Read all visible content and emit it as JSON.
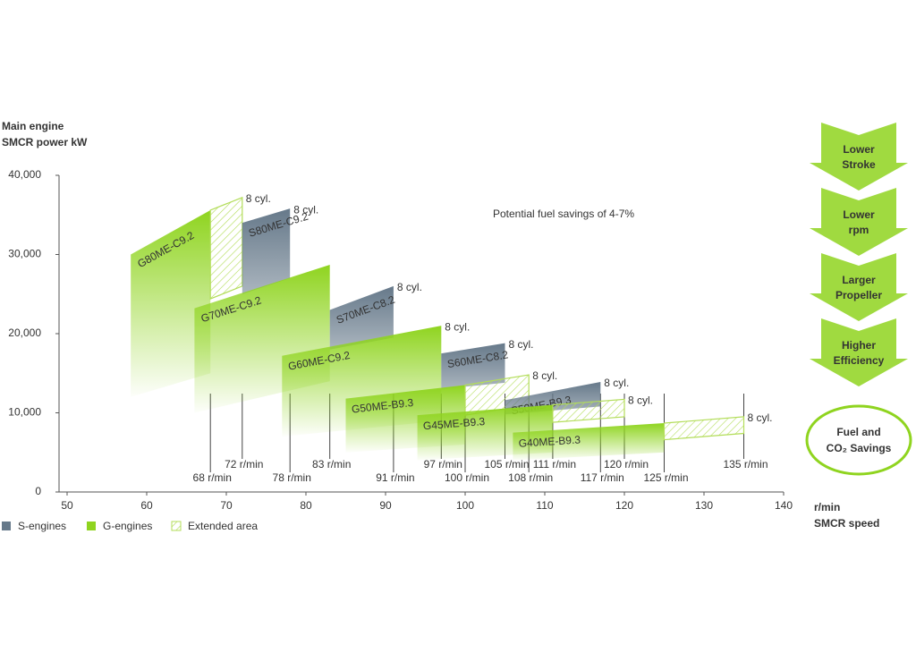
{
  "chart_data": {
    "type": "engine-envelope",
    "y_label": [
      "Main engine",
      "SMCR power kW"
    ],
    "x_label": [
      "r/min",
      "SMCR speed"
    ],
    "xlim": [
      50,
      140
    ],
    "xticks": [
      50,
      60,
      70,
      80,
      90,
      100,
      110,
      120,
      130,
      140
    ],
    "ylim": [
      0,
      40000
    ],
    "yticks": [
      0,
      {
        "value": 10000,
        "label": "10,000"
      },
      {
        "value": 20000,
        "label": "20,000"
      },
      {
        "value": 30000,
        "label": "30,000"
      },
      {
        "value": 40000,
        "label": "40,000"
      }
    ],
    "annotation": "Potential fuel savings of 4-7%",
    "ext_color": "#b3dd5a",
    "legend": [
      {
        "name": "S-engines",
        "color": "#66798a"
      },
      {
        "name": "G-engines",
        "color": "#8fd41f"
      },
      {
        "name": "Extended area",
        "color": "#b3dd5a"
      }
    ],
    "engines": [
      {
        "name": "G80ME-C9.2",
        "color": "#8fd41f",
        "x": [
          58,
          68
        ],
        "top": [
          30000,
          35600
        ],
        "bottom": [
          12000,
          15000
        ],
        "ext": {
          "x": 72,
          "top": 37200,
          "bottom": 26000
        },
        "cyl": "8 cyl."
      },
      {
        "name": "S80ME-C9.2",
        "color": "#66798a",
        "x": [
          72,
          78
        ],
        "top": [
          34000,
          35800
        ],
        "bottom": [
          25000,
          27000
        ],
        "cyl": "8 cyl."
      },
      {
        "name": "G70ME-C9.2",
        "color": "#8fd41f",
        "x": [
          66,
          83
        ],
        "top": [
          23200,
          28700
        ],
        "bottom": [
          10000,
          14000
        ]
      },
      {
        "name": "S70ME-C8.2",
        "color": "#66798a",
        "x": [
          83,
          91
        ],
        "top": [
          23000,
          26000
        ],
        "bottom": [
          18000,
          19500
        ],
        "cyl": "8 cyl."
      },
      {
        "name": "G60ME-C9.2",
        "color": "#8fd41f",
        "x": [
          77,
          97
        ],
        "top": [
          17200,
          21000
        ],
        "bottom": [
          7000,
          9000
        ],
        "cyl": "8 cyl."
      },
      {
        "name": "S60ME-C8.2",
        "color": "#66798a",
        "x": [
          97,
          105
        ],
        "top": [
          17500,
          18800
        ],
        "bottom": [
          13000,
          13800
        ],
        "cyl": "8 cyl."
      },
      {
        "name": "G50ME-B9.3",
        "color": "#8fd41f",
        "x": [
          85,
          100
        ],
        "top": [
          11800,
          13500
        ],
        "bottom": [
          5000,
          6000
        ],
        "ext": {
          "x": 108,
          "top": 14800,
          "bottom": 11000
        },
        "cyl": "8 cyl."
      },
      {
        "name": "S50ME-B9.3",
        "color": "#66798a",
        "x": [
          105,
          117
        ],
        "top": [
          11600,
          13900
        ],
        "bottom": [
          9800,
          10800
        ],
        "cyl": "8 cyl."
      },
      {
        "name": "G45ME-B9.3",
        "color": "#8fd41f",
        "x": [
          94,
          111
        ],
        "top": [
          9700,
          11000
        ],
        "bottom": [
          4000,
          5000
        ],
        "ext": {
          "x": 120,
          "top": 11700,
          "bottom": 9500
        },
        "cyl": "8 cyl."
      },
      {
        "name": "G40ME-B9.3",
        "color": "#8fd41f",
        "x": [
          106,
          125
        ],
        "top": [
          7500,
          8700
        ],
        "bottom": [
          4000,
          5000
        ],
        "ext": {
          "x": 135,
          "top": 9500,
          "bottom": 7400
        },
        "cyl": "8 cyl."
      }
    ],
    "rpm_marks": [
      {
        "value": 68,
        "label": "68 r/min"
      },
      {
        "value": 72,
        "label": "72 r/min"
      },
      {
        "value": 78,
        "label": "78 r/min"
      },
      {
        "value": 83,
        "label": "83 r/min"
      },
      {
        "value": 91,
        "label": "91 r/min"
      },
      {
        "value": 97,
        "label": "97 r/min"
      },
      {
        "value": 100,
        "label": "100 r/min"
      },
      {
        "value": 105,
        "label": "105 r/min"
      },
      {
        "value": 108,
        "label": "108 r/min"
      },
      {
        "value": 111,
        "label": "111 r/min"
      },
      {
        "value": 117,
        "label": "117 r/min"
      },
      {
        "value": 120,
        "label": "120 r/min"
      },
      {
        "value": 125,
        "label": "125 r/min"
      },
      {
        "value": 135,
        "label": "135 r/min"
      }
    ],
    "arrows": [
      [
        "Lower",
        "Stroke"
      ],
      [
        "Lower",
        "rpm"
      ],
      [
        "Larger",
        "Propeller"
      ],
      [
        "Higher",
        "Efficiency"
      ]
    ],
    "result": [
      "Fuel and",
      "CO₂ Savings"
    ]
  }
}
